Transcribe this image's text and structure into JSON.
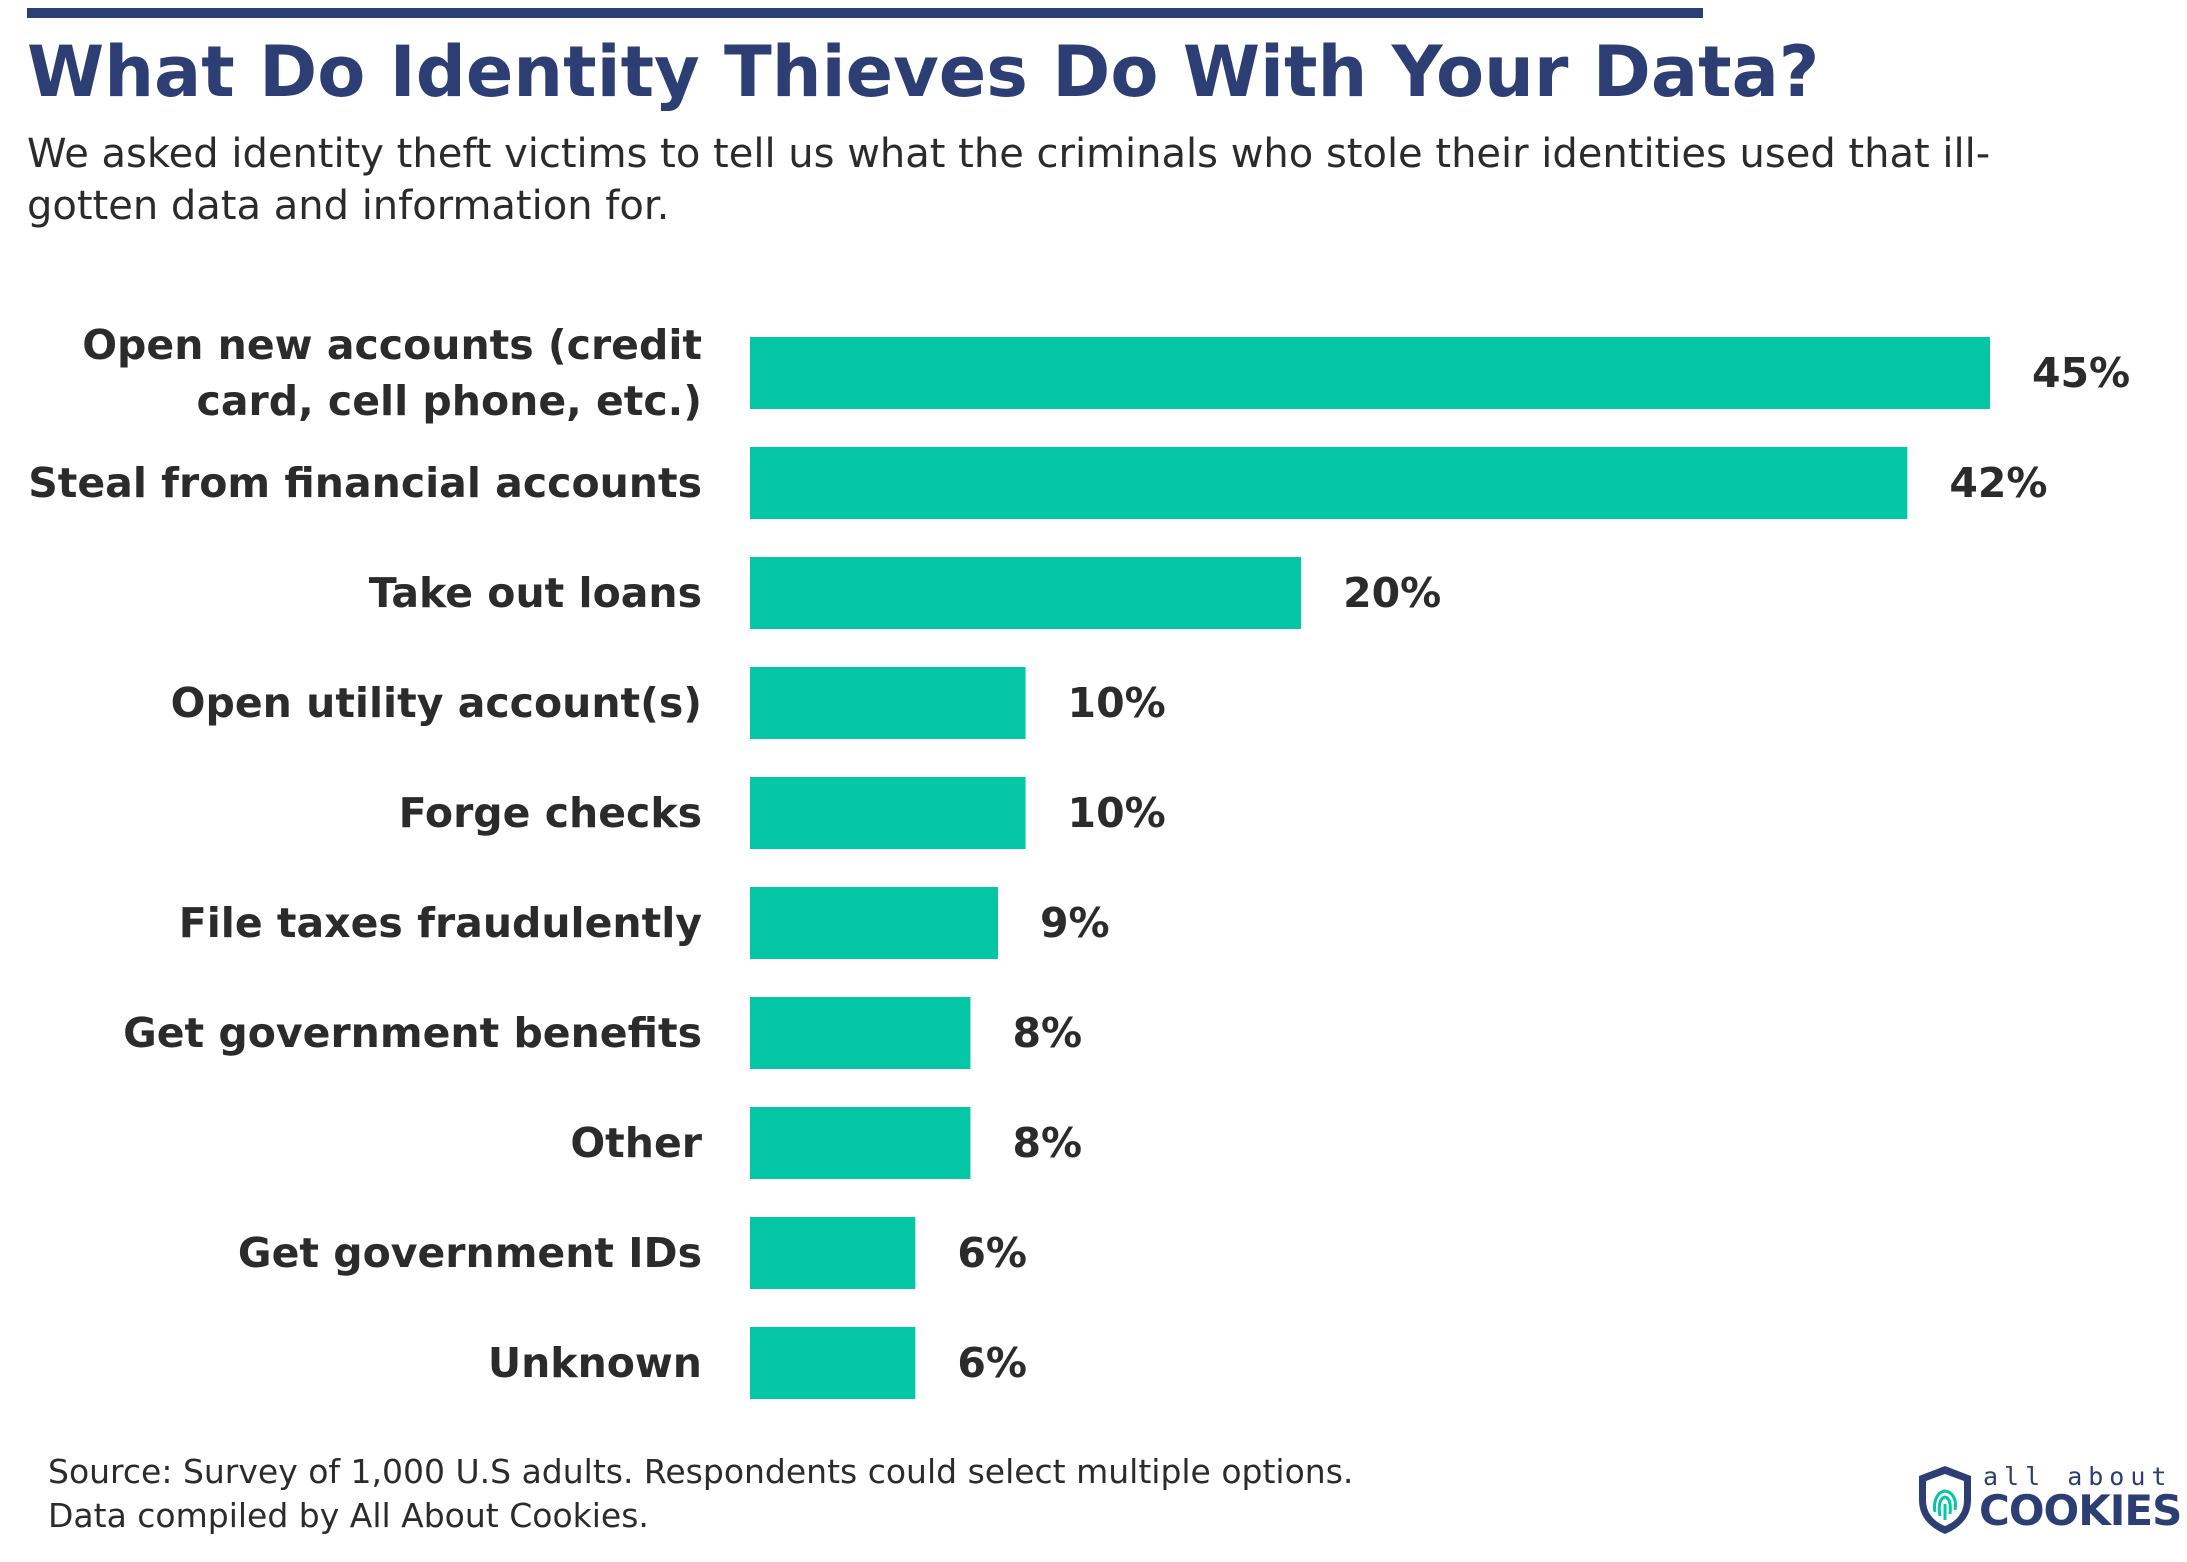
{
  "header": {
    "title": "What Do Identity Thieves Do With Your Data?",
    "subtitle": "We asked identity theft victims to tell us what the criminals who stole their identities used that ill-gotten data and information for."
  },
  "chart_data": {
    "type": "bar",
    "orientation": "horizontal",
    "categories": [
      [
        "Open new accounts (credit",
        "card, cell phone, etc.)"
      ],
      [
        "Steal from financial accounts"
      ],
      [
        "Take out loans"
      ],
      [
        "Open utility account(s)"
      ],
      [
        "Forge checks"
      ],
      [
        "File taxes fraudulently"
      ],
      [
        "Get government benefits"
      ],
      [
        "Other"
      ],
      [
        "Get government IDs"
      ],
      [
        "Unknown"
      ]
    ],
    "values": [
      45,
      42,
      20,
      10,
      10,
      9,
      8,
      8,
      6,
      6
    ],
    "value_labels": [
      "45%",
      "42%",
      "20%",
      "10%",
      "10%",
      "9%",
      "8%",
      "8%",
      "6%",
      "6%"
    ],
    "unit": "%",
    "xlim": [
      0,
      45
    ],
    "bar_color": "#05c6a5",
    "title": "What Do Identity Thieves Do With Your Data?",
    "xlabel": "",
    "ylabel": "",
    "grid": false,
    "legend": false
  },
  "footer": {
    "source_line1": "Source: Survey of 1,000 U.S adults. Respondents could select multiple options.",
    "source_line2": "Data compiled by All About Cookies."
  },
  "logo": {
    "small_text": "all about",
    "big_text": "COOKIES",
    "color": "#2c3e73",
    "accent": "#05c6a5"
  },
  "colors": {
    "title": "#2c3e73",
    "text": "#2b2b2b",
    "bar": "#05c6a5"
  }
}
